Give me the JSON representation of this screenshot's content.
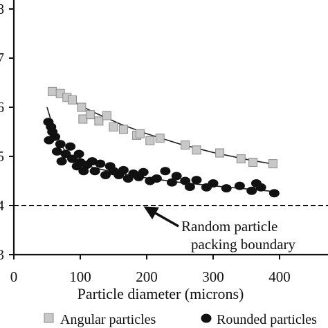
{
  "chart_data": {
    "type": "scatter",
    "title": "",
    "xlabel": "Particle diameter (microns)",
    "ylabel": "",
    "xlim": [
      0,
      450
    ],
    "ylim": [
      0.3,
      0.8
    ],
    "xticks": [
      0,
      100,
      200,
      300,
      400
    ],
    "yticks": [
      0.3,
      0.4,
      0.5,
      0.6,
      0.7,
      0.8
    ],
    "ytick_labels": [
      "3",
      "4",
      "5",
      "6",
      "7",
      "8"
    ],
    "grid": false,
    "legend": "bottom",
    "series": [
      {
        "name": "Angular particles",
        "marker": "square",
        "color": "#c8c8c8",
        "edge": "#8a8a8a",
        "points": [
          [
            58,
            0.632
          ],
          [
            70,
            0.628
          ],
          [
            80,
            0.62
          ],
          [
            88,
            0.615
          ],
          [
            102,
            0.6
          ],
          [
            104,
            0.576
          ],
          [
            115,
            0.585
          ],
          [
            128,
            0.572
          ],
          [
            140,
            0.583
          ],
          [
            150,
            0.56
          ],
          [
            165,
            0.555
          ],
          [
            185,
            0.543
          ],
          [
            190,
            0.546
          ],
          [
            205,
            0.532
          ],
          [
            220,
            0.537
          ],
          [
            258,
            0.523
          ],
          [
            275,
            0.513
          ],
          [
            310,
            0.507
          ],
          [
            342,
            0.495
          ],
          [
            360,
            0.488
          ],
          [
            390,
            0.485
          ]
        ],
        "fit": [
          [
            52,
            0.64
          ],
          [
            80,
            0.617
          ],
          [
            120,
            0.59
          ],
          [
            160,
            0.566
          ],
          [
            200,
            0.546
          ],
          [
            250,
            0.525
          ],
          [
            300,
            0.508
          ],
          [
            350,
            0.494
          ],
          [
            392,
            0.484
          ]
        ]
      },
      {
        "name": "Rounded particles",
        "marker": "circle",
        "color": "#111111",
        "edge": "#000000",
        "points": [
          [
            52,
            0.57
          ],
          [
            53,
            0.533
          ],
          [
            56,
            0.56
          ],
          [
            58,
            0.55
          ],
          [
            62,
            0.54
          ],
          [
            65,
            0.51
          ],
          [
            70,
            0.525
          ],
          [
            72,
            0.49
          ],
          [
            78,
            0.505
          ],
          [
            85,
            0.52
          ],
          [
            88,
            0.495
          ],
          [
            95,
            0.48
          ],
          [
            98,
            0.505
          ],
          [
            100,
            0.488
          ],
          [
            105,
            0.47
          ],
          [
            110,
            0.483
          ],
          [
            118,
            0.49
          ],
          [
            122,
            0.47
          ],
          [
            130,
            0.485
          ],
          [
            138,
            0.462
          ],
          [
            145,
            0.48
          ],
          [
            150,
            0.47
          ],
          [
            158,
            0.462
          ],
          [
            165,
            0.472
          ],
          [
            172,
            0.455
          ],
          [
            180,
            0.465
          ],
          [
            188,
            0.458
          ],
          [
            195,
            0.468
          ],
          [
            205,
            0.45
          ],
          [
            215,
            0.455
          ],
          [
            228,
            0.47
          ],
          [
            238,
            0.447
          ],
          [
            245,
            0.46
          ],
          [
            258,
            0.45
          ],
          [
            265,
            0.438
          ],
          [
            275,
            0.452
          ],
          [
            290,
            0.437
          ],
          [
            300,
            0.445
          ],
          [
            320,
            0.435
          ],
          [
            340,
            0.44
          ],
          [
            358,
            0.43
          ],
          [
            365,
            0.445
          ],
          [
            372,
            0.437
          ],
          [
            392,
            0.425
          ]
        ],
        "fit": [
          [
            50,
            0.6
          ],
          [
            60,
            0.555
          ],
          [
            75,
            0.515
          ],
          [
            95,
            0.492
          ],
          [
            120,
            0.477
          ],
          [
            160,
            0.465
          ],
          [
            200,
            0.456
          ],
          [
            250,
            0.447
          ],
          [
            300,
            0.44
          ],
          [
            350,
            0.434
          ],
          [
            395,
            0.428
          ]
        ]
      }
    ],
    "reference_line": {
      "y": 0.4,
      "style": "dashed"
    },
    "annotations": [
      {
        "text": [
          "Random particle",
          "packing boundary"
        ],
        "arrow_to": [
          185,
          0.405
        ]
      }
    ]
  }
}
